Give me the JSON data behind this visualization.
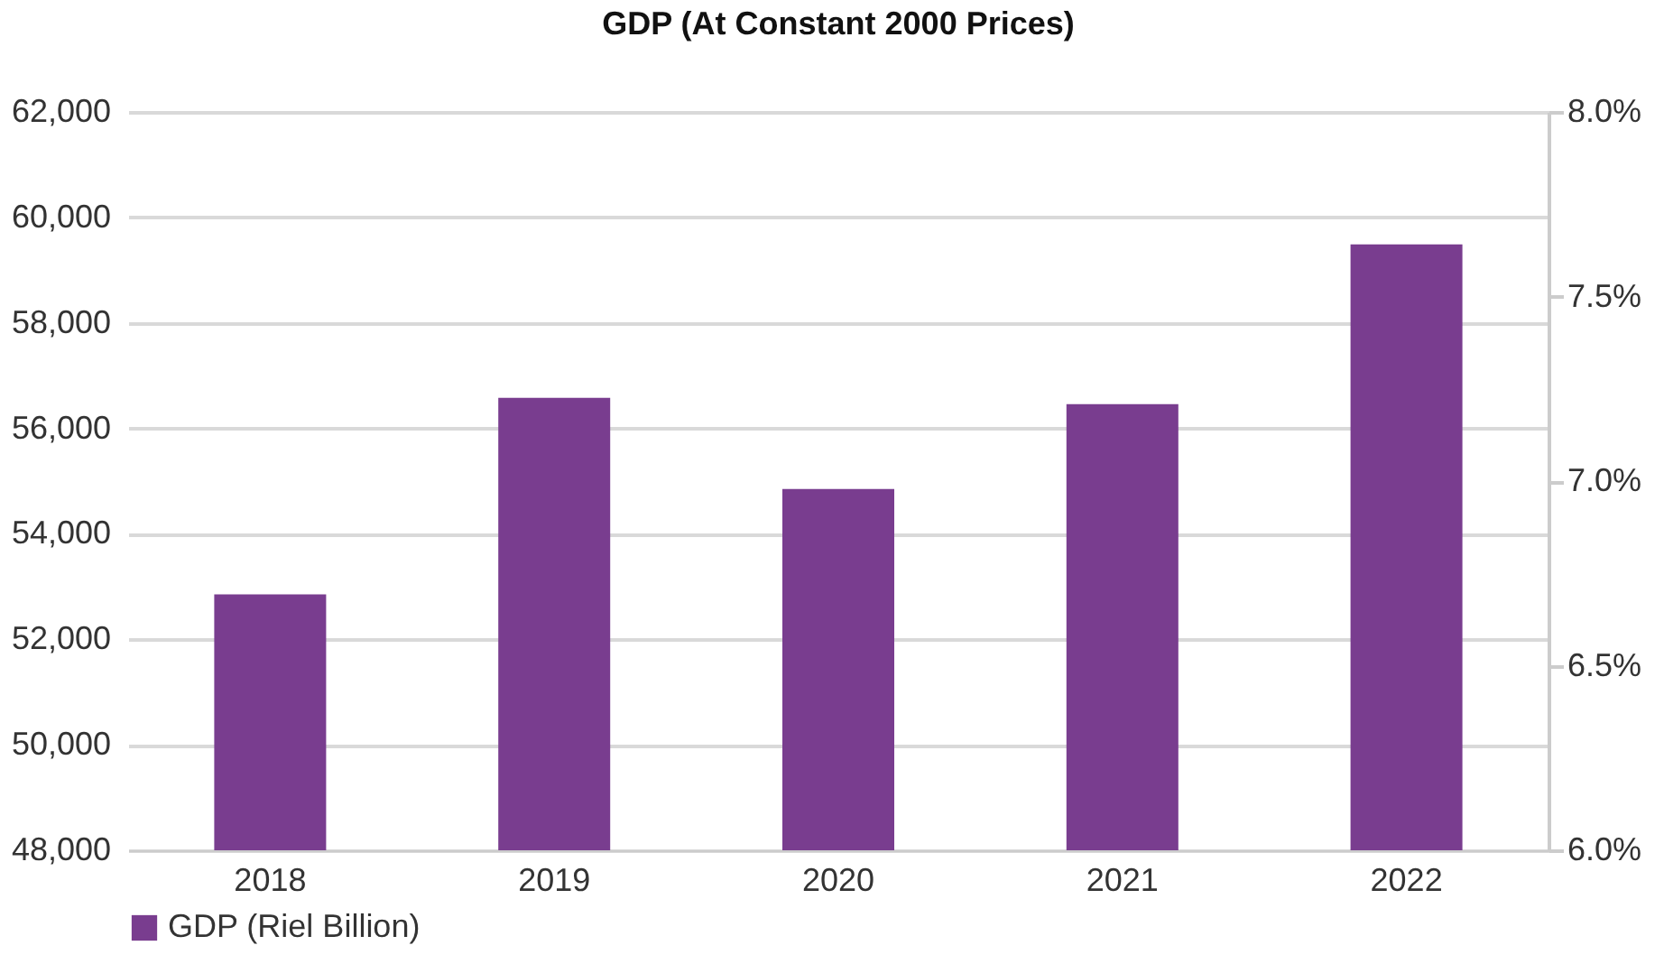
{
  "chart_data": {
    "type": "bar",
    "title": "GDP (At Constant 2000 Prices)",
    "categories": [
      "2018",
      "2019",
      "2020",
      "2021",
      "2022"
    ],
    "series": [
      {
        "name": "GDP (Riel Billion)",
        "color": "#793d8f",
        "values": [
          52850,
          56580,
          54850,
          56460,
          59490
        ]
      }
    ],
    "ylim": [
      48000,
      62000
    ],
    "yticks": [
      {
        "value": 48000,
        "label": "48,000"
      },
      {
        "value": 50000,
        "label": "50,000"
      },
      {
        "value": 52000,
        "label": "52,000"
      },
      {
        "value": 54000,
        "label": "54,000"
      },
      {
        "value": 56000,
        "label": "56,000"
      },
      {
        "value": 58000,
        "label": "58,000"
      },
      {
        "value": 60000,
        "label": "60,000"
      },
      {
        "value": 62000,
        "label": "62,000"
      }
    ],
    "y2lim": [
      6.0,
      8.0
    ],
    "y2ticks": [
      {
        "value": 6.0,
        "label": "6.0%"
      },
      {
        "value": 6.5,
        "label": "6.5%"
      },
      {
        "value": 7.0,
        "label": "7.0%"
      },
      {
        "value": 7.5,
        "label": "7.5%"
      },
      {
        "value": 8.0,
        "label": "8.0%"
      }
    ],
    "grid": "y",
    "legend": "bottom"
  }
}
